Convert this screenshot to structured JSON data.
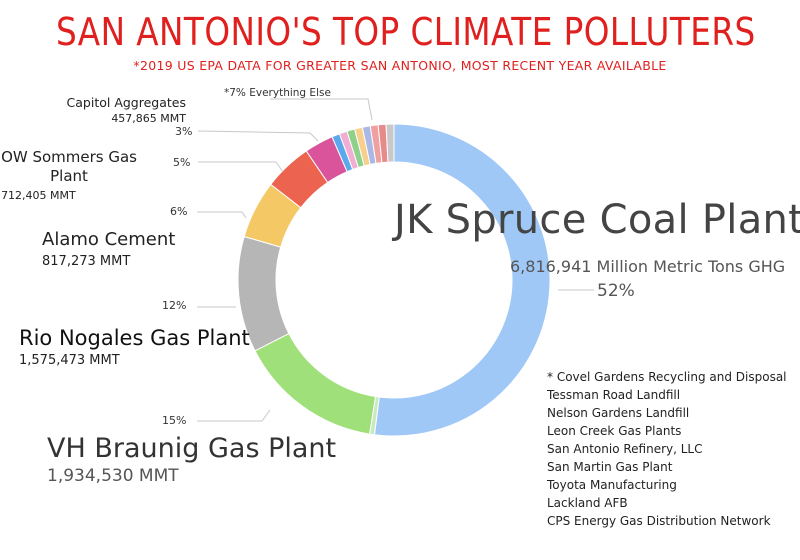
{
  "title": "SAN ANTONIO'S TOP CLIMATE POLLUTERS",
  "subtitle": "*2019 US EPA DATA  FOR GREATER SAN ANTONIO, MOST RECENT YEAR AVAILABLE",
  "chart_data": {
    "type": "pie",
    "style": "donut",
    "categories": [
      "JK Spruce Coal Plant",
      "Everything Else",
      "VH Braunig Gas Plant",
      "Rio Nogales Gas Plant",
      "Alamo Cement",
      "OW Sommers Gas Plant",
      "Capitol Aggregates",
      "Everything Else"
    ],
    "values": [
      52,
      0.5,
      15,
      12,
      6,
      5,
      3,
      6.5
    ],
    "series": [
      {
        "values": [
          52,
          0.5,
          15,
          12,
          6,
          5,
          3,
          6.5
        ]
      }
    ],
    "colors": [
      "#9fc8f7",
      "#c8eac0",
      "#9fe07a",
      "#b6b6b6",
      "#f4c865",
      "#ec6450",
      "#d9549a",
      "#cccccc"
    ],
    "else_colors": [
      "#5ba8ec",
      "#f2aed2",
      "#8fd18a",
      "#f6d08c",
      "#aab8e6",
      "#f0a0a0",
      "#e78a8a",
      "#c9c9c9"
    ]
  },
  "labels": {
    "jk_name": "JK Spruce Coal Plant",
    "jk_val": "6,816,941 Million Metric Tons GHG",
    "jk_pct": "52%",
    "vh_name": "VH Braunig Gas Plant",
    "vh_val": "1,934,530 MMT",
    "vh_pct": "15%",
    "rio_name": "Rio Nogales Gas Plant",
    "rio_val": "1,575,473 MMT",
    "rio_pct": "12%",
    "alamo_name": "Alamo Cement",
    "alamo_val": "817,273 MMT",
    "alamo_pct": "6%",
    "ow_name_1": "OW Sommers Gas",
    "ow_name_2": "Plant",
    "ow_val": "712,405 MMT",
    "ow_pct": "5%",
    "cap_name": "Capitol Aggregates",
    "cap_val": "457,865 MMT",
    "cap_pct": "3%",
    "else_label": "*7% Everything Else"
  },
  "notes": [
    "* Covel Gardens Recycling and Disposal",
    "Tessman Road Landfill",
    "Nelson Gardens Landfill",
    "Leon Creek Gas Plants",
    "San Antonio Refinery, LLC",
    "San Martin Gas Plant",
    "Toyota Manufacturing",
    "Lackland AFB",
    "CPS Energy Gas Distribution Network"
  ]
}
